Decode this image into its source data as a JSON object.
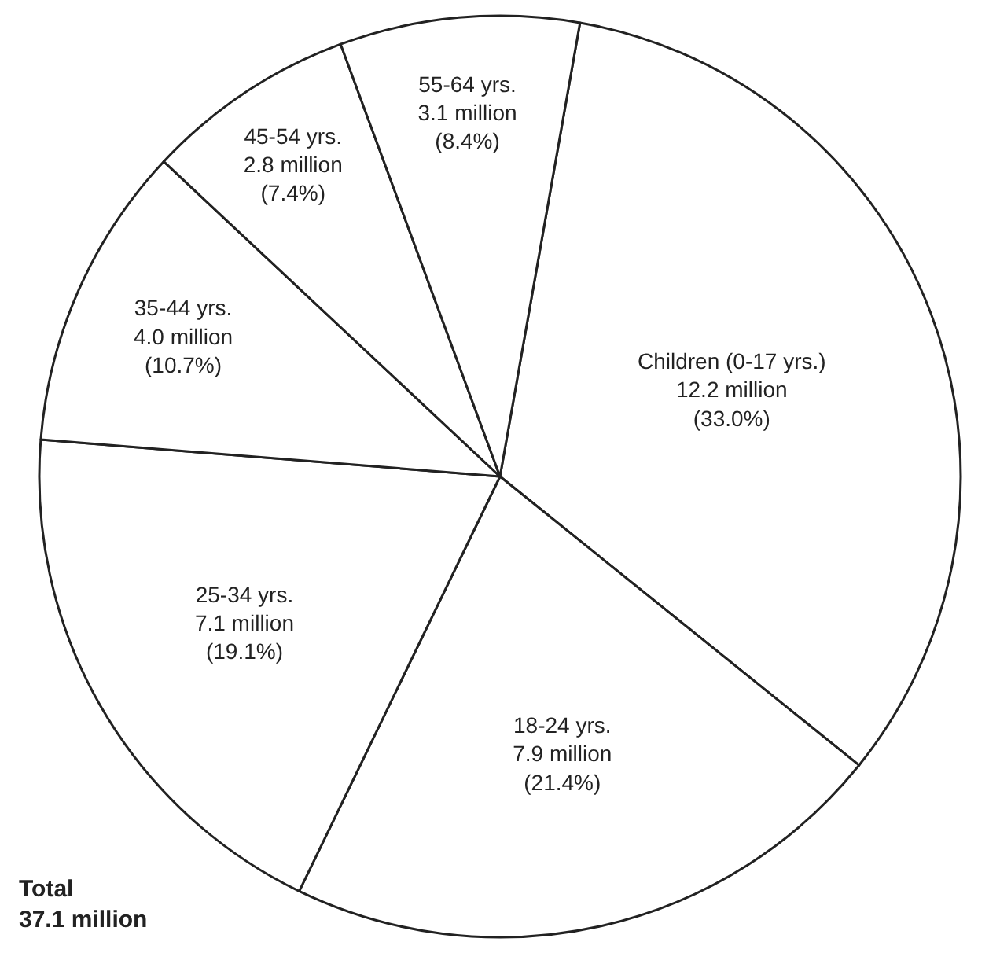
{
  "chart_data": {
    "type": "pie",
    "categories": [
      "Children (0-17 yrs.)",
      "18-24 yrs.",
      "25-34 yrs.",
      "35-44 yrs.",
      "45-54 yrs.",
      "55-64 yrs."
    ],
    "values": [
      33.0,
      21.4,
      19.1,
      10.7,
      7.4,
      8.4
    ],
    "value_labels": [
      "12.2 million\n(33.0%)",
      "7.9 million\n(21.4%)",
      "7.1 million\n(19.1%)",
      "4.0 million\n(10.7%)",
      "2.8 million\n(7.4%)",
      "3.1 million\n(8.4%)"
    ],
    "colors": [
      "#ffffff",
      "#ffffff",
      "#ffffff",
      "#ffffff",
      "#ffffff",
      "#ffffff"
    ],
    "annotations": [
      "Total\n37.1 million"
    ],
    "legend": false
  }
}
